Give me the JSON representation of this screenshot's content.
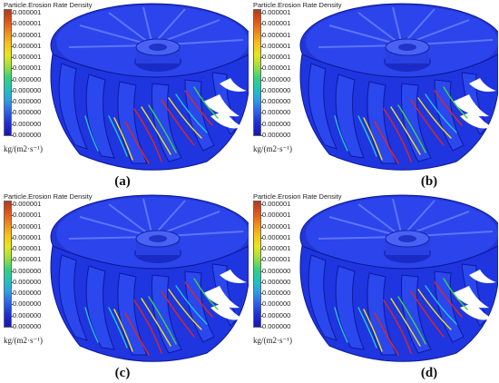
{
  "legend": {
    "title": "Particle.Erosion Rate Density",
    "ticks": [
      "0.000001",
      "0.000001",
      "0.000001",
      "0.000001",
      "0.000001",
      "0.000001",
      "0.000000",
      "0.000000",
      "0.000000",
      "0.000000",
      "0.000000",
      "0.000000"
    ],
    "unit": "kg/(m2·s⁻¹)"
  },
  "panels": [
    {
      "caption": "(a)"
    },
    {
      "caption": "(b)"
    },
    {
      "caption": "(c)"
    },
    {
      "caption": "(d)"
    }
  ],
  "colors": {
    "runner_blue": "#1f35e0",
    "runner_dark": "#0f1ea8",
    "erosion_red": "#e0281c",
    "erosion_yellow": "#f2e21a",
    "erosion_green": "#3fd24a",
    "erosion_cyan": "#20c8d8"
  }
}
